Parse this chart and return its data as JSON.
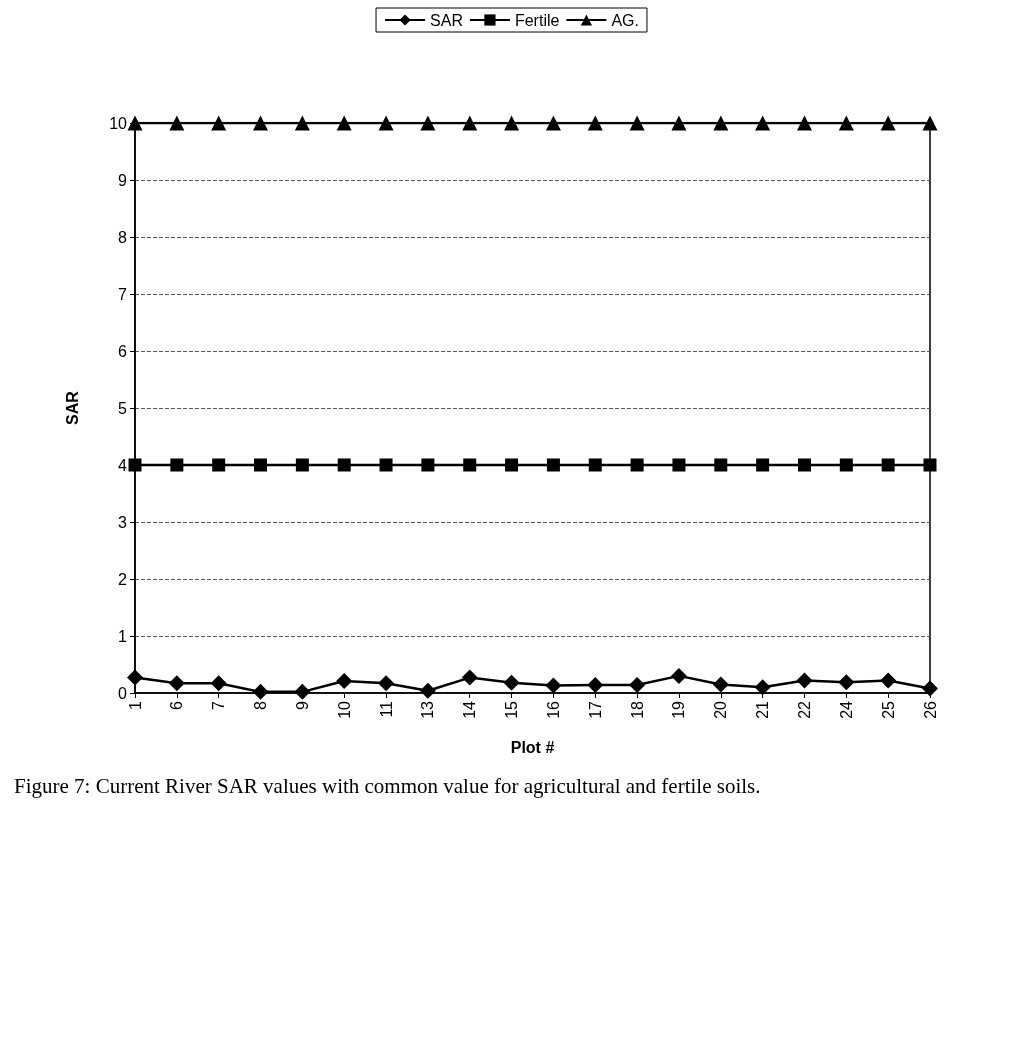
{
  "chart_data": {
    "type": "line",
    "categories": [
      "1",
      "6",
      "7",
      "8",
      "9",
      "10",
      "11",
      "13",
      "14",
      "15",
      "16",
      "17",
      "18",
      "19",
      "20",
      "21",
      "22",
      "24",
      "25",
      "26"
    ],
    "series": [
      {
        "name": "SAR",
        "color": "#000000",
        "marker": "diamond",
        "values": [
          0.27,
          0.17,
          0.17,
          0.02,
          0.02,
          0.21,
          0.17,
          0.04,
          0.27,
          0.18,
          0.13,
          0.14,
          0.14,
          0.3,
          0.15,
          0.1,
          0.22,
          0.19,
          0.22,
          0.08
        ]
      },
      {
        "name": "Fertile",
        "color": "#000000",
        "marker": "square",
        "values": [
          4,
          4,
          4,
          4,
          4,
          4,
          4,
          4,
          4,
          4,
          4,
          4,
          4,
          4,
          4,
          4,
          4,
          4,
          4,
          4
        ]
      },
      {
        "name": "AG.",
        "color": "#000000",
        "marker": "triangle",
        "values": [
          10,
          10,
          10,
          10,
          10,
          10,
          10,
          10,
          10,
          10,
          10,
          10,
          10,
          10,
          10,
          10,
          10,
          10,
          10,
          10
        ]
      }
    ],
    "xlabel": "Plot #",
    "ylabel": "SAR",
    "ylim": [
      0,
      10
    ],
    "yticks": [
      0,
      1,
      2,
      3,
      4,
      5,
      6,
      7,
      8,
      9,
      10
    ],
    "grid": "y",
    "legend": "top",
    "line_style": "solid",
    "annotations": [
      "Figure 7: Current River SAR values with common value for agricultural and fertile soils."
    ]
  }
}
